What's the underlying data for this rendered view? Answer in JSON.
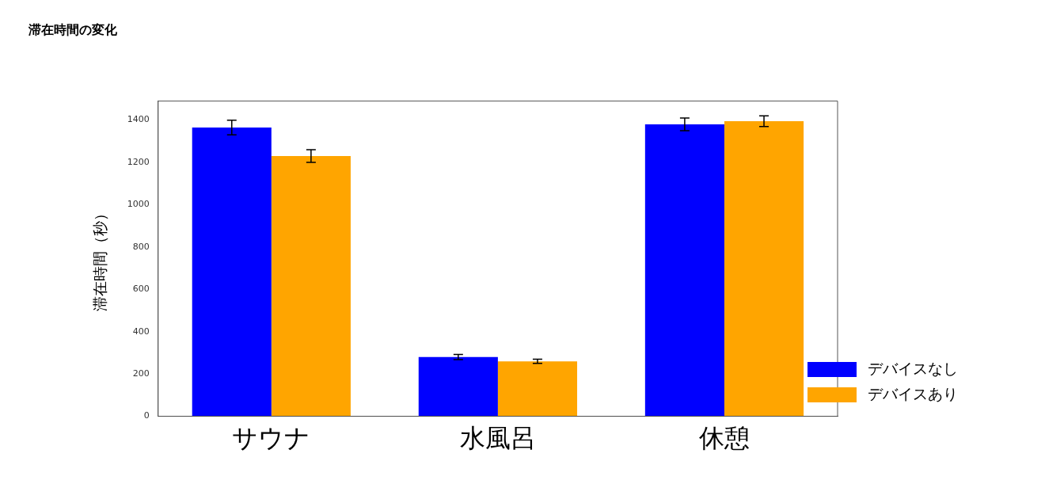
{
  "chart_data": {
    "type": "bar",
    "title": "滞在時間の変化",
    "ylabel": "滞在時間（秒）",
    "categories": [
      "サウナ",
      "水風呂",
      "休憩"
    ],
    "series": [
      {
        "name": "デバイスなし",
        "color": "#0000ff",
        "values": [
          1365,
          280,
          1380
        ],
        "errors": [
          35,
          12,
          30
        ]
      },
      {
        "name": "デバイスあり",
        "color": "#ffa500",
        "values": [
          1230,
          260,
          1395
        ],
        "errors": [
          30,
          10,
          25
        ]
      }
    ],
    "ylim": [
      0,
      1490
    ],
    "yticks": [
      0,
      200,
      400,
      600,
      800,
      1000,
      1200,
      1400
    ],
    "grid": false,
    "legend": "right"
  }
}
